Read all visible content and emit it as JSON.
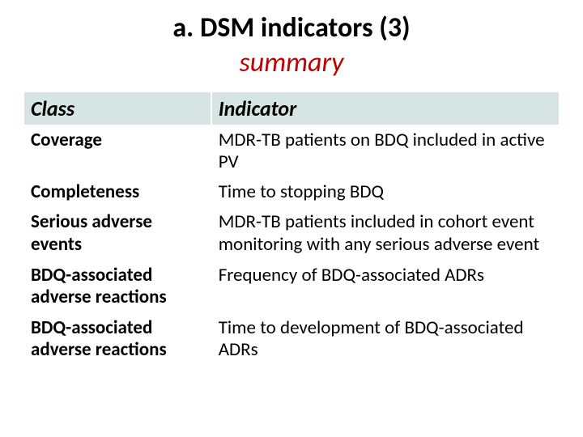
{
  "title": {
    "line1": "a. DSM indicators (3)",
    "line2": "summary"
  },
  "table": {
    "headers": {
      "class": "Class",
      "indicator": "Indicator"
    },
    "rows": [
      {
        "class": "Coverage",
        "indicator": "MDR-TB patients on BDQ included in active PV"
      },
      {
        "class": "Completeness",
        "indicator": "Time to stopping BDQ"
      },
      {
        "class": "Serious adverse events",
        "indicator": "MDR-TB patients included in cohort event monitoring with any serious adverse event"
      },
      {
        "class": "BDQ-associated adverse reactions",
        "indicator": "Frequency of BDQ-associated ADRs"
      },
      {
        "class": "BDQ-associated adverse reactions",
        "indicator": "Time to development of BDQ-associated ADRs"
      }
    ]
  },
  "styling": {
    "header_bg": "#d6e5e3",
    "title_color_line1": "#000000",
    "title_color_line2": "#c00000",
    "font_family": "Calibri, Arial, sans-serif",
    "title_fontsize": 34,
    "header_fontsize": 26,
    "cell_fontsize": 23,
    "class_col_width_pct": 35,
    "border_color": "#ffffff",
    "background_color": "#ffffff"
  }
}
